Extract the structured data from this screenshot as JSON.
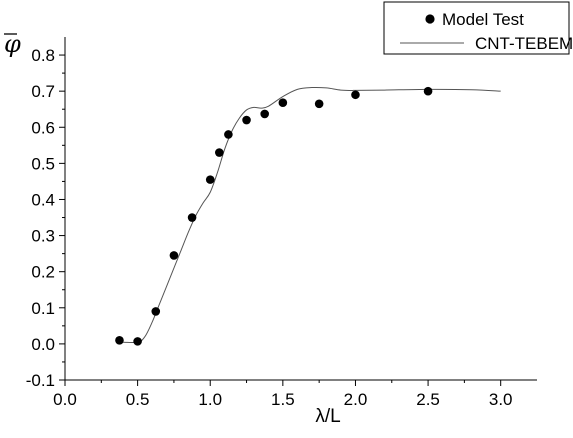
{
  "chart_data": {
    "type": "scatter",
    "title": "",
    "xlabel": "λ/L",
    "ylabel": "φ",
    "xlim": [
      0.0,
      3.25
    ],
    "ylim": [
      -0.1,
      0.85
    ],
    "x_ticks": [
      0.0,
      0.5,
      1.0,
      1.5,
      2.0,
      2.5,
      3.0
    ],
    "x_tick_labels": [
      "0.0",
      "0.5",
      "1.0",
      "1.5",
      "2.0",
      "2.5",
      "3.0"
    ],
    "y_ticks": [
      -0.1,
      0.0,
      0.1,
      0.2,
      0.3,
      0.4,
      0.5,
      0.6,
      0.7,
      0.8
    ],
    "y_tick_labels": [
      "-0.1",
      "0.0",
      "0.1",
      "0.2",
      "0.3",
      "0.4",
      "0.5",
      "0.6",
      "0.7",
      "0.8"
    ],
    "grid": false,
    "legend_position": "top-right",
    "series": [
      {
        "name": "Model Test",
        "kind": "scatter",
        "color": "#000000",
        "points": [
          [
            0.375,
            0.01
          ],
          [
            0.5,
            0.007
          ],
          [
            0.625,
            0.09
          ],
          [
            0.75,
            0.245
          ],
          [
            0.875,
            0.35
          ],
          [
            1.0,
            0.455
          ],
          [
            1.0625,
            0.53
          ],
          [
            1.125,
            0.58
          ],
          [
            1.25,
            0.62
          ],
          [
            1.375,
            0.637
          ],
          [
            1.5,
            0.668
          ],
          [
            1.75,
            0.665
          ],
          [
            2.0,
            0.69
          ],
          [
            2.5,
            0.7
          ]
        ]
      },
      {
        "name": "CNT-TEBEM",
        "kind": "line",
        "color": "#555555",
        "points": [
          [
            0.375,
            0.005
          ],
          [
            0.5,
            0.005
          ],
          [
            0.55,
            0.02
          ],
          [
            0.6,
            0.06
          ],
          [
            0.65,
            0.11
          ],
          [
            0.7,
            0.16
          ],
          [
            0.75,
            0.21
          ],
          [
            0.8,
            0.26
          ],
          [
            0.85,
            0.31
          ],
          [
            0.9,
            0.355
          ],
          [
            0.95,
            0.39
          ],
          [
            1.0,
            0.42
          ],
          [
            1.05,
            0.475
          ],
          [
            1.1,
            0.54
          ],
          [
            1.15,
            0.59
          ],
          [
            1.2,
            0.625
          ],
          [
            1.25,
            0.648
          ],
          [
            1.3,
            0.655
          ],
          [
            1.35,
            0.653
          ],
          [
            1.4,
            0.658
          ],
          [
            1.5,
            0.685
          ],
          [
            1.6,
            0.705
          ],
          [
            1.7,
            0.71
          ],
          [
            1.8,
            0.709
          ],
          [
            1.9,
            0.703
          ],
          [
            2.0,
            0.702
          ],
          [
            2.2,
            0.703
          ],
          [
            2.5,
            0.705
          ],
          [
            2.8,
            0.704
          ],
          [
            3.0,
            0.7
          ]
        ]
      }
    ]
  }
}
